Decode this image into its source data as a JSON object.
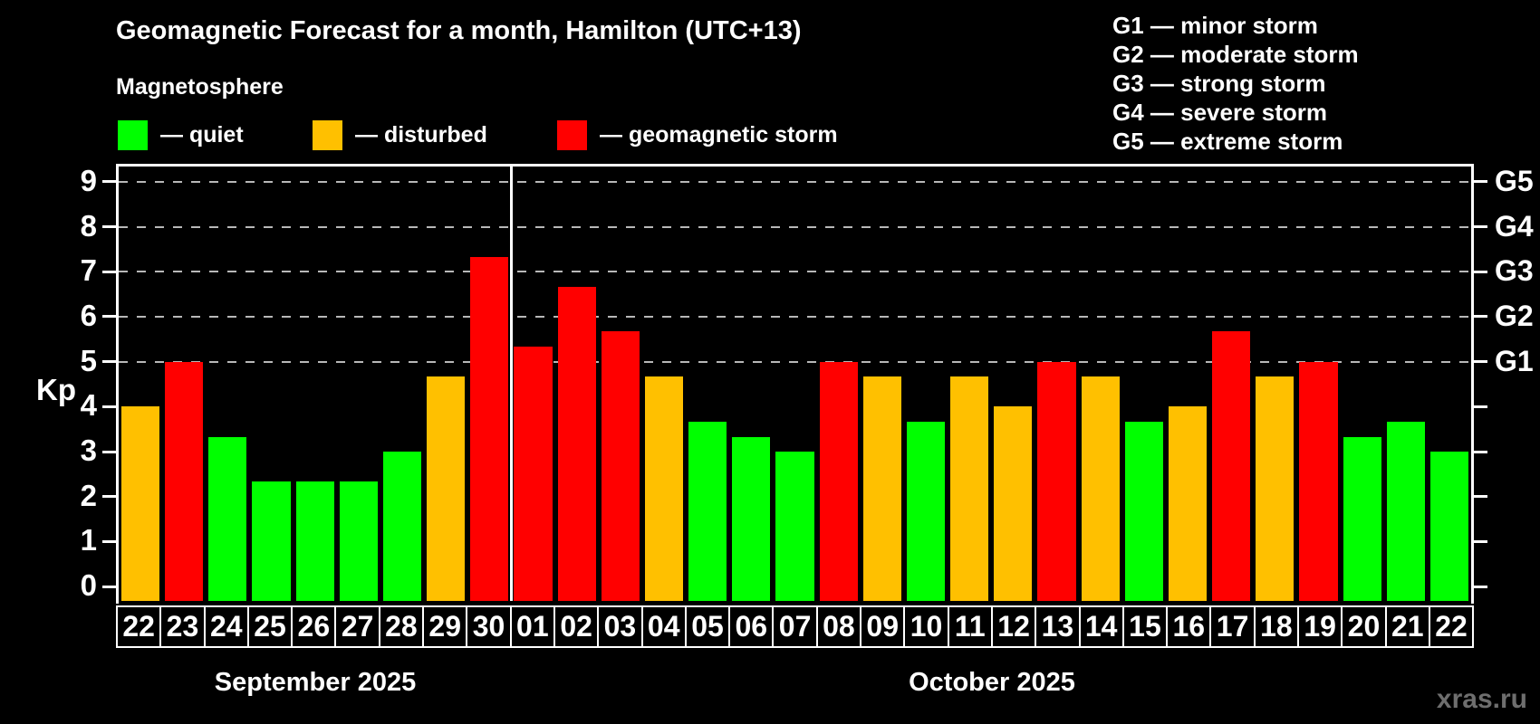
{
  "title": "Geomagnetic Forecast for a month, Hamilton (UTC+13)",
  "subtitle": "Magnetosphere",
  "legend": {
    "quiet": "— quiet",
    "disturbed": "— disturbed",
    "storm": "— geomagnetic storm"
  },
  "g_legend": [
    "G1 — minor storm",
    "G2 — moderate storm",
    "G3 — strong storm",
    "G4 — severe storm",
    "G5 — extreme storm"
  ],
  "axis": {
    "kp_label": "Kp",
    "y_ticks": [
      0,
      1,
      2,
      3,
      4,
      5,
      6,
      7,
      8,
      9
    ]
  },
  "months": [
    {
      "label": "September 2025",
      "days": 9
    },
    {
      "label": "October 2025",
      "days": 22
    }
  ],
  "watermark": "xras.ru",
  "colors": {
    "quiet": "#00ff00",
    "disturbed": "#ffc000",
    "storm": "#ff0000",
    "gridline": "#b8b8b8",
    "background": "#000000",
    "text": "#ffffff"
  },
  "chart_data": {
    "type": "bar",
    "title": "Geomagnetic Forecast for a month, Hamilton (UTC+13)",
    "xlabel": "",
    "ylabel": "Kp",
    "ylim": [
      0,
      9
    ],
    "grid": "dashed horizontal lines at Kp 5,6,7,8,9 (storm levels G1-G5)",
    "legend_position": "top-left and top-right",
    "categories": [
      "22",
      "23",
      "24",
      "25",
      "26",
      "27",
      "28",
      "29",
      "30",
      "01",
      "02",
      "03",
      "04",
      "05",
      "06",
      "07",
      "08",
      "09",
      "10",
      "11",
      "12",
      "13",
      "14",
      "15",
      "16",
      "17",
      "18",
      "19",
      "20",
      "21",
      "22"
    ],
    "values": [
      4,
      5,
      3.33,
      2.33,
      2.33,
      2.33,
      3,
      4.67,
      7.33,
      5.33,
      6.67,
      5.67,
      4.67,
      3.67,
      3.33,
      3,
      5,
      4.67,
      3.67,
      4.67,
      4,
      5,
      4.67,
      3.67,
      4,
      5.67,
      4.67,
      5,
      3.33,
      3.67,
      3
    ],
    "statuses": [
      "disturbed",
      "storm",
      "quiet",
      "quiet",
      "quiet",
      "quiet",
      "quiet",
      "disturbed",
      "storm",
      "storm",
      "storm",
      "storm",
      "disturbed",
      "quiet",
      "quiet",
      "quiet",
      "storm",
      "disturbed",
      "quiet",
      "disturbed",
      "disturbed",
      "storm",
      "disturbed",
      "quiet",
      "disturbed",
      "storm",
      "disturbed",
      "storm",
      "quiet",
      "quiet",
      "quiet"
    ],
    "right_axis": {
      "5": "G1",
      "6": "G2",
      "7": "G3",
      "8": "G4",
      "9": "G5"
    }
  }
}
